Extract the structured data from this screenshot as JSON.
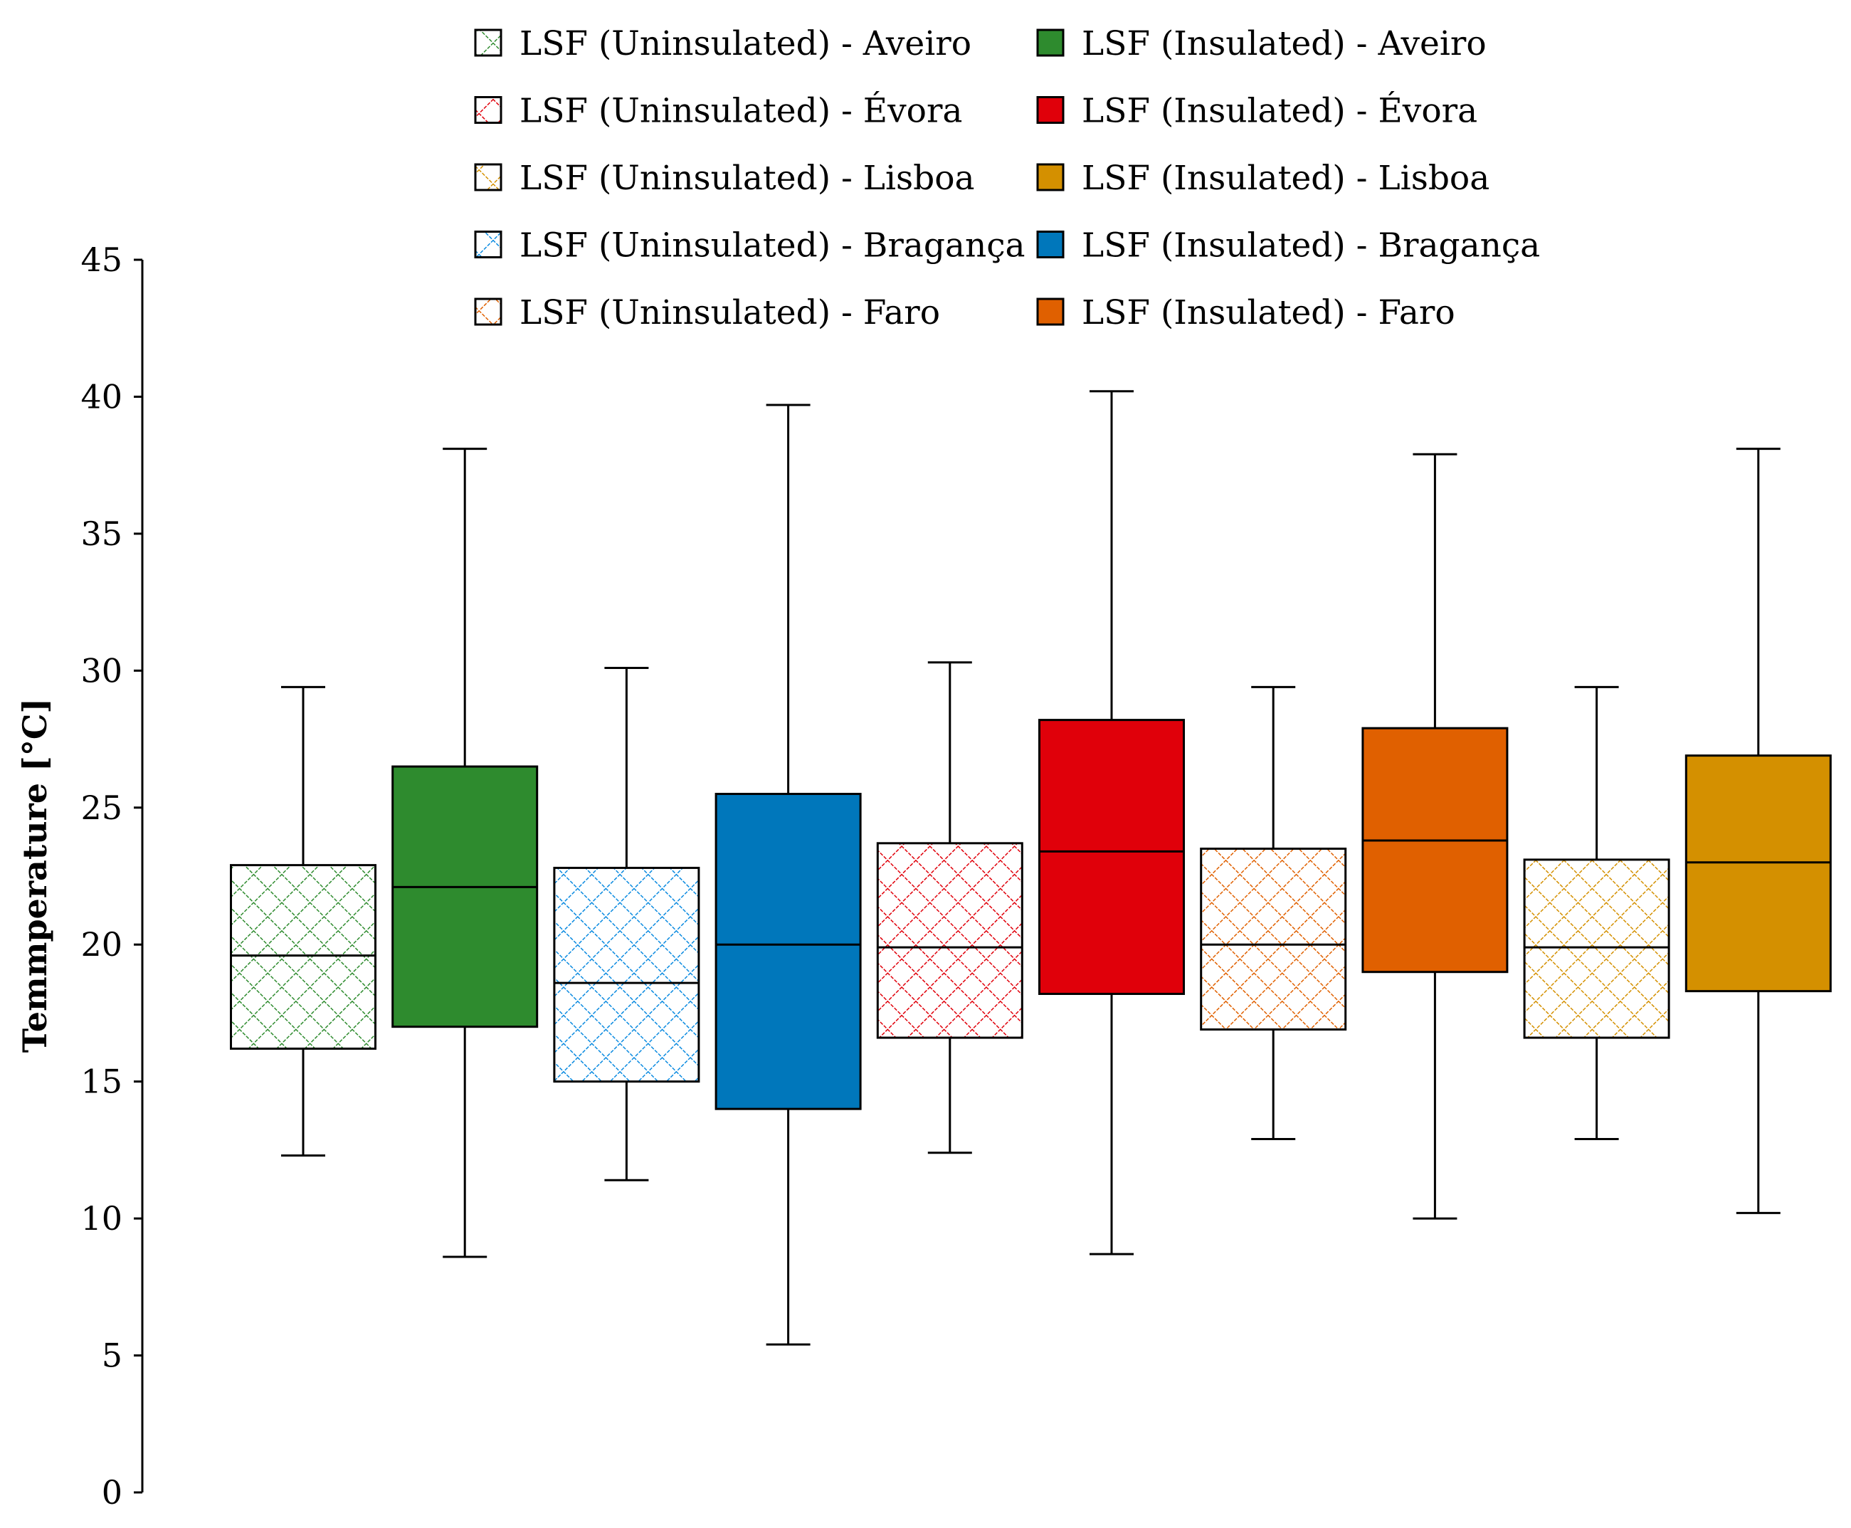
{
  "chart_data": {
    "type": "box",
    "ylabel": "Temmperature [°C]",
    "xlabel": "",
    "ylim": [
      0,
      45
    ],
    "yticks": [
      0,
      5,
      10,
      15,
      20,
      25,
      30,
      35,
      40,
      45
    ],
    "legend_position": "top",
    "series": [
      {
        "name": "LSF (Uninsulated) - Aveiro",
        "color": "#2e8b2e",
        "fill": "hatched",
        "whisker_low": 12.3,
        "q1": 16.2,
        "median": 19.6,
        "q3": 22.9,
        "whisker_high": 29.4
      },
      {
        "name": "LSF (Insulated) - Aveiro",
        "color": "#2e8b2e",
        "fill": "solid",
        "whisker_low": 8.6,
        "q1": 17.0,
        "median": 22.1,
        "q3": 26.5,
        "whisker_high": 38.1
      },
      {
        "name": "LSF (Uninsulated) - Bragança",
        "color": "#0a8ae0",
        "fill": "hatched",
        "whisker_low": 11.4,
        "q1": 15.0,
        "median": 18.6,
        "q3": 22.8,
        "whisker_high": 30.1
      },
      {
        "name": "LSF (Insulated) - Bragança",
        "color": "#0077bb",
        "fill": "solid",
        "whisker_low": 5.4,
        "q1": 14.0,
        "median": 20.0,
        "q3": 25.5,
        "whisker_high": 39.7
      },
      {
        "name": "LSF (Uninsulated) - Évora",
        "color": "#e0000a",
        "fill": "hatched",
        "whisker_low": 12.4,
        "q1": 16.6,
        "median": 19.9,
        "q3": 23.7,
        "whisker_high": 30.3
      },
      {
        "name": "LSF (Insulated) - Évora",
        "color": "#e0000a",
        "fill": "solid",
        "whisker_low": 8.7,
        "q1": 18.2,
        "median": 23.4,
        "q3": 28.2,
        "whisker_high": 40.2
      },
      {
        "name": "LSF (Uninsulated) - Faro",
        "color": "#e06000",
        "fill": "hatched",
        "whisker_low": 12.9,
        "q1": 16.9,
        "median": 20.0,
        "q3": 23.5,
        "whisker_high": 29.4
      },
      {
        "name": "LSF (Insulated) - Faro",
        "color": "#e06000",
        "fill": "solid",
        "whisker_low": 10.0,
        "q1": 19.0,
        "median": 23.8,
        "q3": 27.9,
        "whisker_high": 37.9
      },
      {
        "name": "LSF (Uninsulated) - Lisboa",
        "color": "#d49000",
        "fill": "hatched",
        "whisker_low": 12.9,
        "q1": 16.6,
        "median": 19.9,
        "q3": 23.1,
        "whisker_high": 29.4
      },
      {
        "name": "LSF (Insulated) - Lisboa",
        "color": "#d49000",
        "fill": "solid",
        "whisker_low": 10.2,
        "q1": 18.3,
        "median": 23.0,
        "q3": 26.9,
        "whisker_high": 38.1
      }
    ],
    "legend": [
      {
        "label": "LSF (Uninsulated) - Aveiro",
        "color": "#2e8b2e",
        "fill": "hatched"
      },
      {
        "label": "LSF (Insulated) - Aveiro",
        "color": "#2e8b2e",
        "fill": "solid"
      },
      {
        "label": "LSF (Uninsulated) - Évora",
        "color": "#e0000a",
        "fill": "hatched"
      },
      {
        "label": "LSF (Insulated) - Évora",
        "color": "#e0000a",
        "fill": "solid"
      },
      {
        "label": "LSF (Uninsulated) - Lisboa",
        "color": "#d49000",
        "fill": "hatched"
      },
      {
        "label": "LSF (Insulated) - Lisboa",
        "color": "#d49000",
        "fill": "solid"
      },
      {
        "label": "LSF (Uninsulated) - Bragança",
        "color": "#0a8ae0",
        "fill": "hatched"
      },
      {
        "label": "LSF (Insulated) - Bragança",
        "color": "#0077bb",
        "fill": "solid"
      },
      {
        "label": "LSF (Uninsulated) - Faro",
        "color": "#e06000",
        "fill": "hatched"
      },
      {
        "label": "LSF (Insulated) - Faro",
        "color": "#e06000",
        "fill": "solid"
      }
    ]
  }
}
